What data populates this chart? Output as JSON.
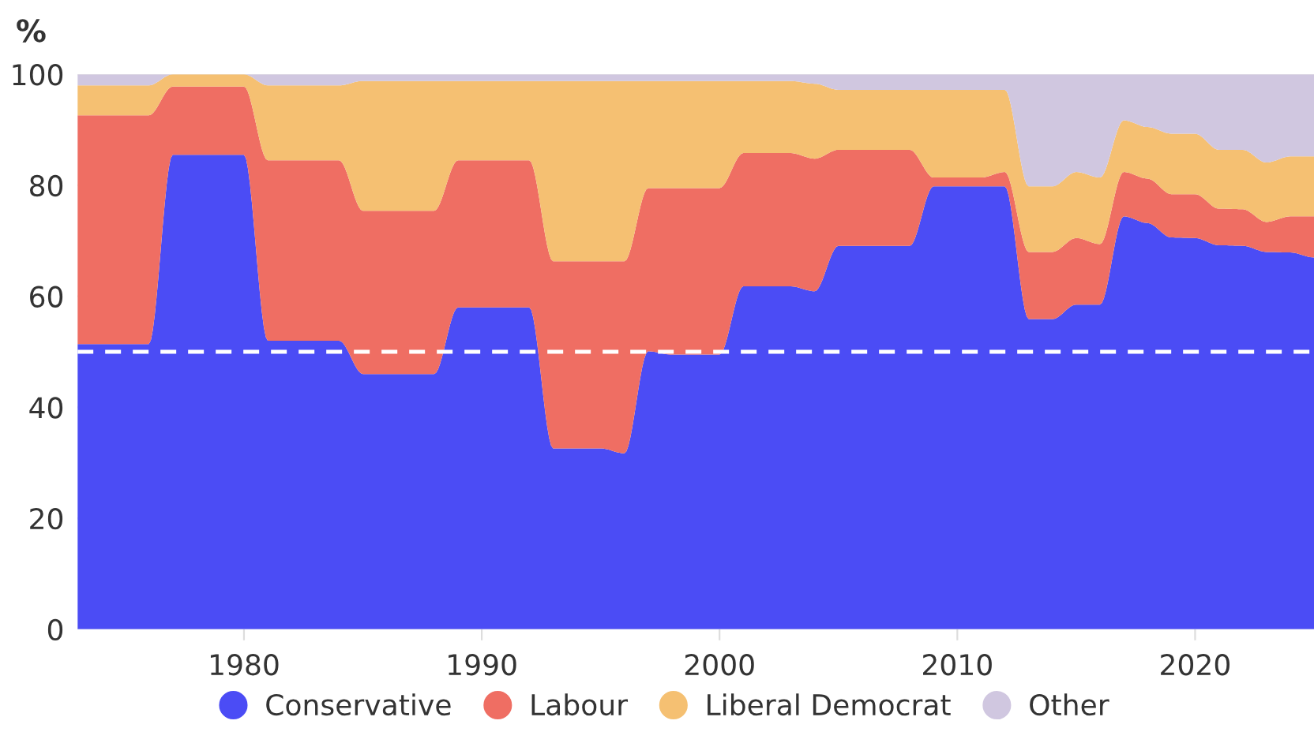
{
  "chart_data": {
    "type": "area",
    "stacked": true,
    "ylabel": "%",
    "x": [
      1973,
      1974,
      1975,
      1976,
      1977,
      1978,
      1979,
      1980,
      1981,
      1982,
      1983,
      1984,
      1985,
      1986,
      1987,
      1988,
      1989,
      1990,
      1991,
      1992,
      1993,
      1994,
      1995,
      1996,
      1997,
      1998,
      1999,
      2000,
      2001,
      2002,
      2003,
      2004,
      2005,
      2006,
      2007,
      2008,
      2009,
      2010,
      2011,
      2012,
      2013,
      2014,
      2015,
      2016,
      2017,
      2018,
      2019,
      2020,
      2021,
      2022,
      2023,
      2024,
      2025
    ],
    "series": [
      {
        "name": "Conservative",
        "color": "#4b4cf5",
        "values": [
          51.4,
          51.4,
          51.4,
          51.4,
          85.5,
          85.5,
          85.5,
          85.5,
          52,
          52,
          52,
          52,
          46,
          46,
          46,
          46,
          58,
          58,
          58,
          58,
          32.6,
          32.6,
          32.6,
          31.7,
          50.1,
          49.5,
          49.5,
          49.5,
          61.8,
          61.8,
          61.8,
          60.9,
          69.1,
          69.1,
          69.1,
          69.1,
          79.8,
          79.8,
          79.8,
          79.8,
          55.9,
          55.9,
          58.5,
          58.5,
          74.4,
          73.2,
          70.6,
          70.5,
          69.2,
          69.1,
          68,
          67.9,
          67
        ]
      },
      {
        "name": "Labour",
        "color": "#ef6e63",
        "values": [
          41.2,
          41.2,
          41.2,
          41.2,
          12.3,
          12.3,
          12.3,
          12.3,
          32.5,
          32.5,
          32.5,
          32.5,
          29.4,
          29.4,
          29.4,
          29.4,
          26.5,
          26.5,
          26.5,
          26.5,
          33.7,
          33.7,
          33.7,
          34.6,
          29.4,
          30,
          30,
          30,
          24,
          24,
          24,
          23.9,
          17.3,
          17.3,
          17.3,
          17.3,
          1.6,
          1.6,
          1.6,
          2.6,
          12.1,
          12.1,
          12,
          10.9,
          8,
          8,
          7.8,
          7.9,
          6.6,
          6.6,
          5.4,
          6.5,
          7.4
        ]
      },
      {
        "name": "Liberal Democrat",
        "color": "#f5c072",
        "values": [
          5.4,
          5.4,
          5.4,
          5.4,
          2.2,
          2.2,
          2.2,
          2.2,
          13.5,
          13.5,
          13.5,
          13.5,
          23.4,
          23.4,
          23.4,
          23.4,
          14.3,
          14.3,
          14.3,
          14.3,
          32.5,
          32.5,
          32.5,
          32.5,
          19.3,
          19.3,
          19.3,
          19.3,
          13,
          13,
          13,
          13.5,
          10.8,
          10.8,
          10.8,
          10.8,
          15.8,
          15.8,
          15.8,
          14.8,
          11.8,
          11.8,
          11.9,
          12,
          9.3,
          9.3,
          10.9,
          10.9,
          10.6,
          10.7,
          10.7,
          10.8,
          10.8
        ]
      },
      {
        "name": "Other",
        "color": "#d0c7e0",
        "values": [
          2,
          2,
          2,
          2,
          0,
          0,
          0,
          0,
          2,
          2,
          2,
          2,
          1.2,
          1.2,
          1.2,
          1.2,
          1.2,
          1.2,
          1.2,
          1.2,
          1.2,
          1.2,
          1.2,
          1.2,
          1.2,
          1.2,
          1.2,
          1.2,
          1.2,
          1.2,
          1.2,
          1.7,
          2.8,
          2.8,
          2.8,
          2.8,
          2.8,
          2.8,
          2.8,
          2.8,
          20.2,
          20.2,
          17.6,
          18.6,
          8.3,
          9.5,
          10.7,
          10.7,
          13.6,
          13.6,
          15.9,
          14.8,
          14.8
        ]
      }
    ],
    "xlim": [
      1973,
      2025
    ],
    "xticks": [
      1980,
      1990,
      2000,
      2010,
      2020
    ],
    "ylim": [
      0,
      100
    ],
    "yticks": [
      0,
      20,
      40,
      60,
      80,
      100
    ],
    "ref_lines": [
      {
        "axis": "y",
        "value": 50,
        "color": "#ffffff",
        "line_style": "dashed"
      }
    ],
    "grid": "y",
    "legend": "bottom"
  }
}
